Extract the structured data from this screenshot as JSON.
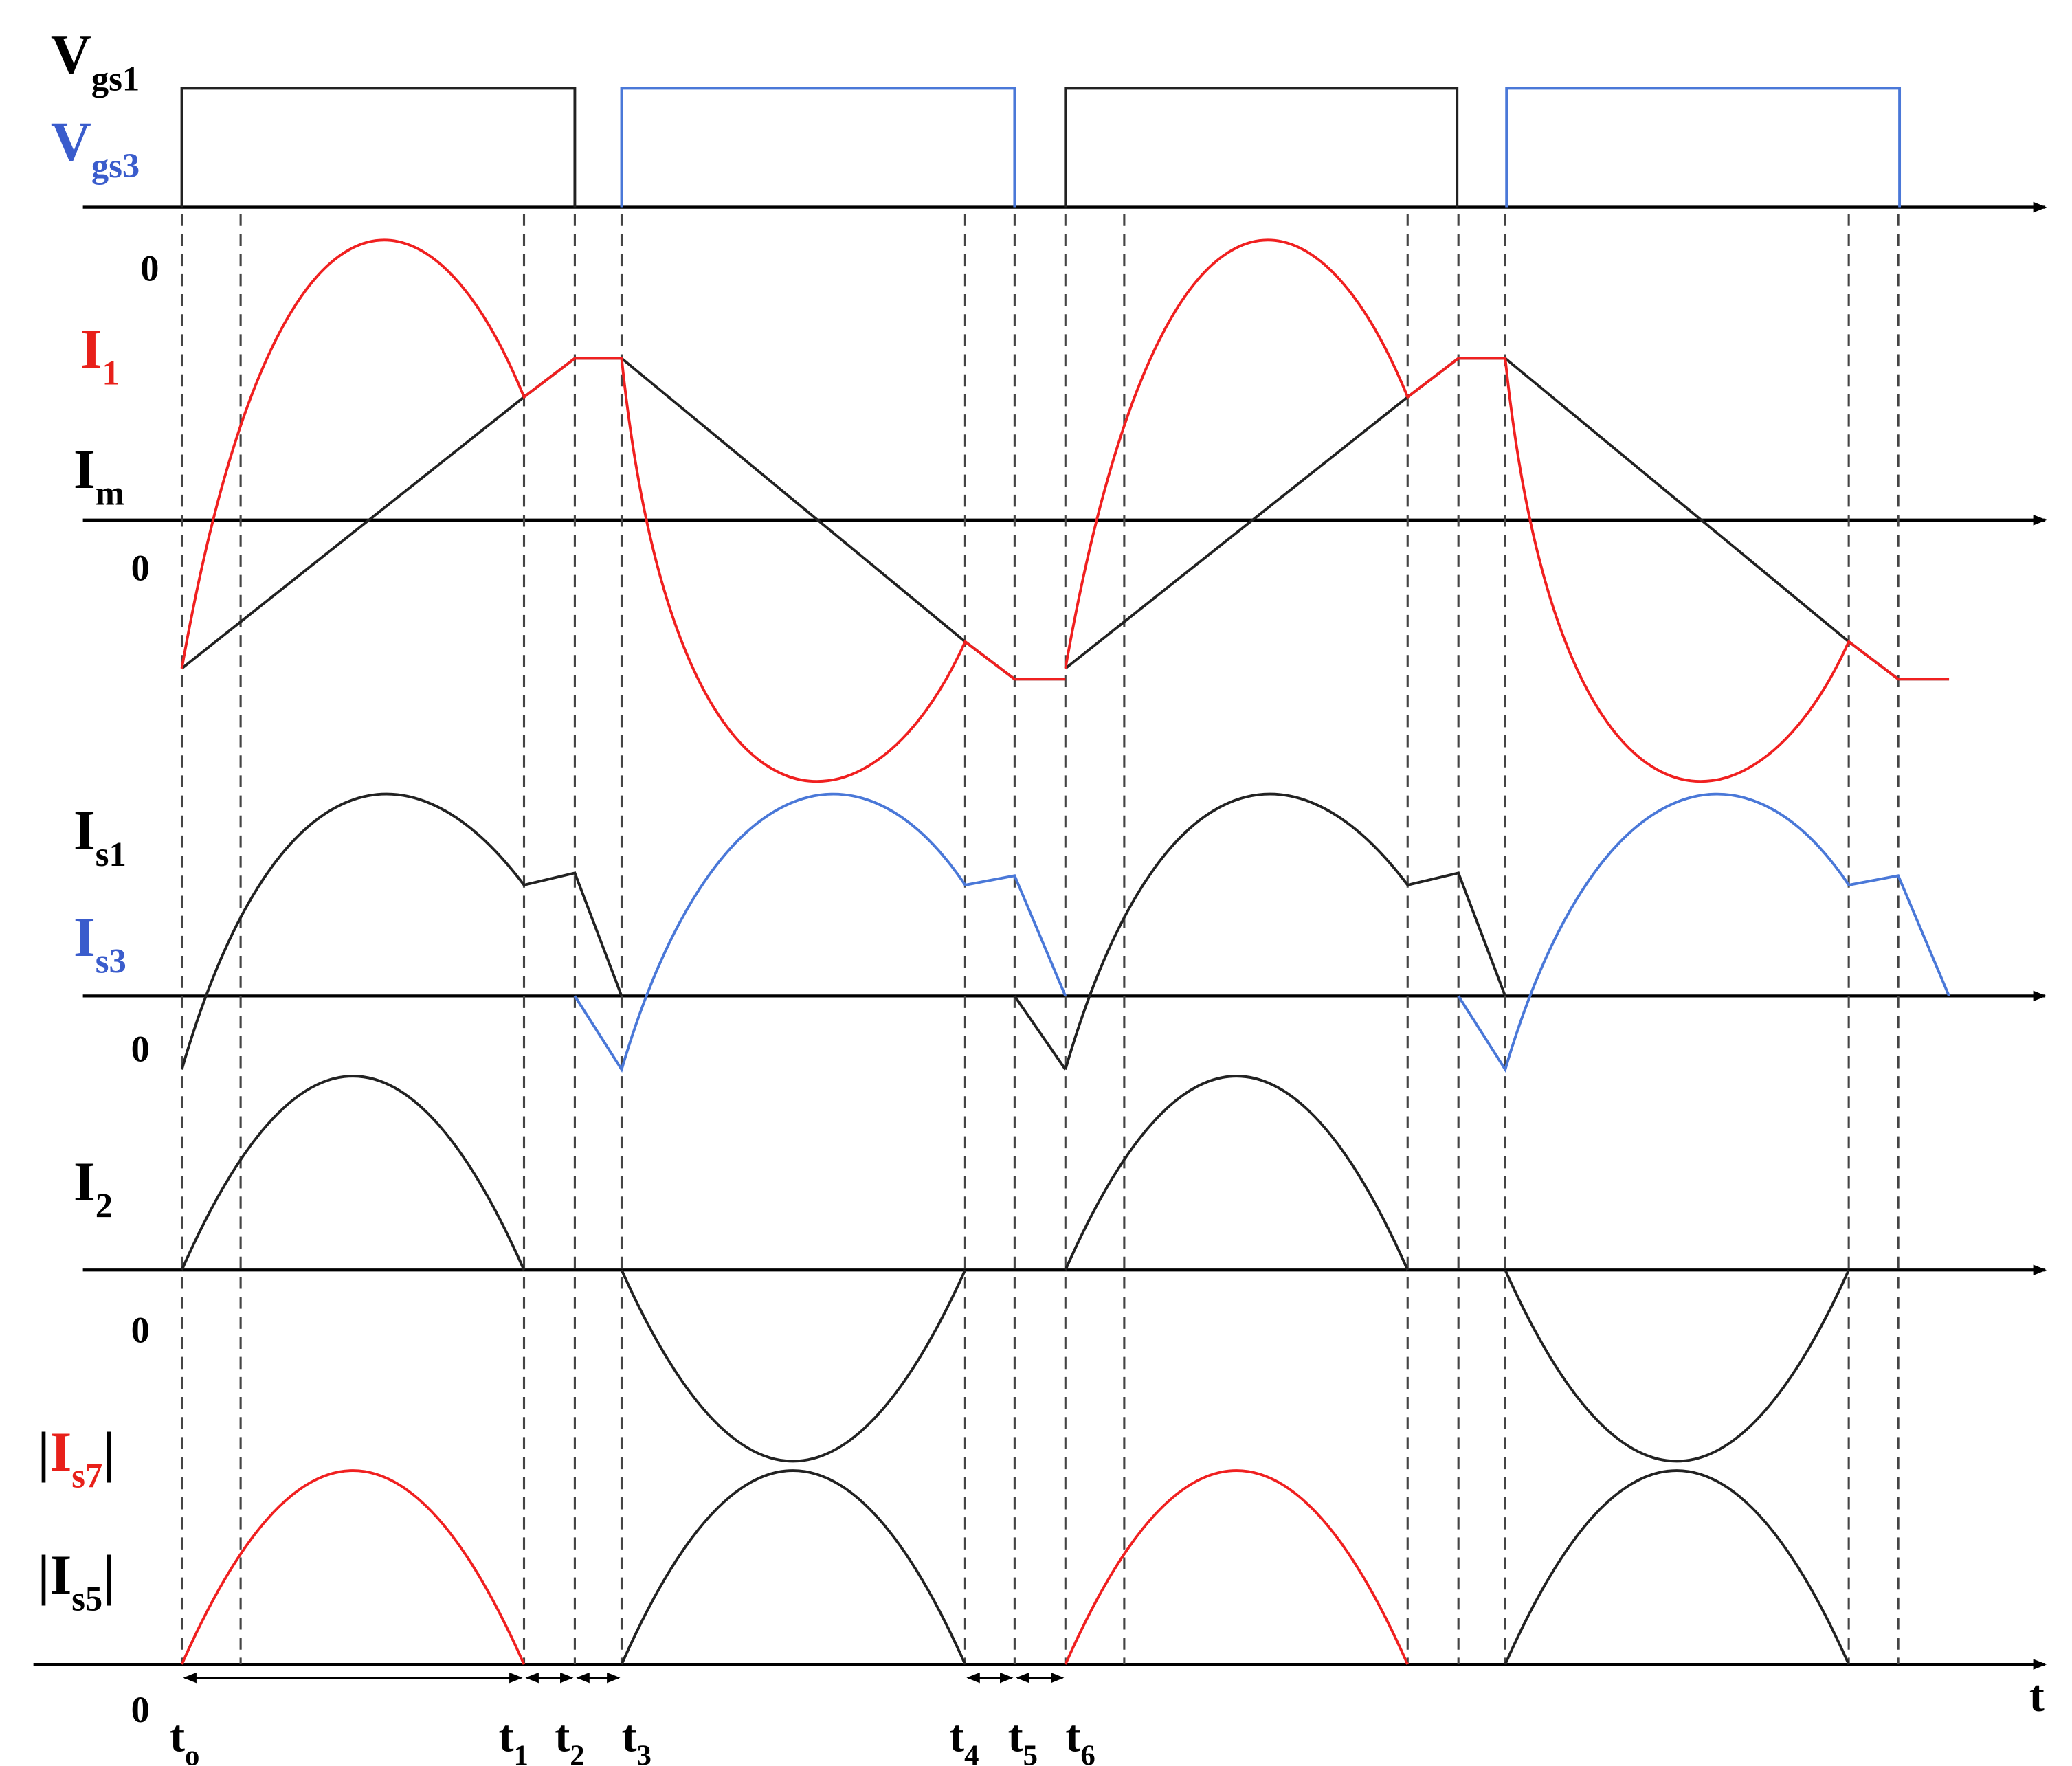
{
  "labels": [
    {
      "main": "V",
      "sub": "gs1",
      "color": "#000000"
    },
    {
      "main": "V",
      "sub": "gs3",
      "color": "#3a5ccc"
    },
    {
      "main": "I",
      "sub": "1",
      "color": "#e8201a"
    },
    {
      "main": "I",
      "sub": "m",
      "color": "#000000"
    },
    {
      "main": "I",
      "sub": "s1",
      "color": "#000000"
    },
    {
      "main": "I",
      "sub": "s3",
      "color": "#3a5ccc"
    },
    {
      "main": "I",
      "sub": "2",
      "color": "#000000"
    },
    {
      "prefix": "|",
      "main": "I",
      "sub": "s7",
      "suffix": "|",
      "color": "#e8201a"
    },
    {
      "prefix": "|",
      "main": "I",
      "sub": "s5",
      "suffix": "|",
      "color": "#000000"
    }
  ],
  "zeros": [
    "0",
    "0",
    "0",
    "0",
    "0"
  ],
  "time_labels": [
    {
      "main": "t",
      "sub": "o"
    },
    {
      "main": "t",
      "sub": "1"
    },
    {
      "main": "t",
      "sub": "2"
    },
    {
      "main": "t",
      "sub": "3"
    },
    {
      "main": "t",
      "sub": "4"
    },
    {
      "main": "t",
      "sub": "5"
    },
    {
      "main": "t",
      "sub": "6"
    }
  ],
  "axis_label": "t"
}
